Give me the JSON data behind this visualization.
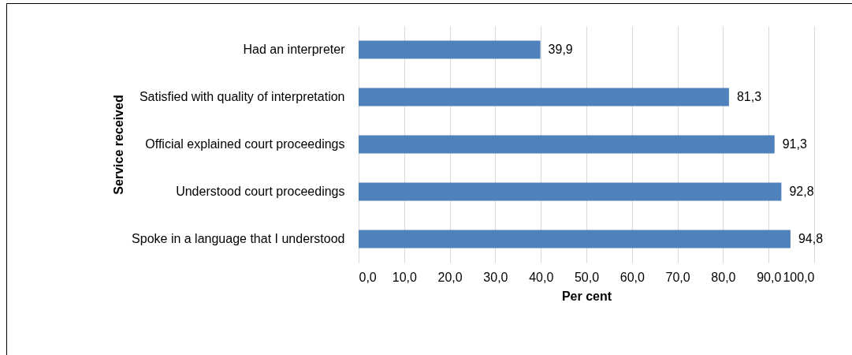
{
  "chart_data": {
    "type": "bar",
    "orientation": "horizontal",
    "xlabel": "Per cent",
    "ylabel": "Service received",
    "categories": [
      "Had an interpreter",
      "Satisfied with quality of interpretation",
      "Official explained court proceedings",
      "Understood court proceedings",
      "Spoke in a language that I understood"
    ],
    "values": [
      39.9,
      81.3,
      91.3,
      92.8,
      94.8
    ],
    "value_labels": [
      "39,9",
      "81,3",
      "91,3",
      "92,8",
      "94,8"
    ],
    "color": "#4f81bd",
    "xlim": [
      0,
      100
    ],
    "xticks": [
      {
        "value": 0,
        "label": "0,0"
      },
      {
        "value": 10,
        "label": "10,0"
      },
      {
        "value": 20,
        "label": "20,0"
      },
      {
        "value": 30,
        "label": "30,0"
      },
      {
        "value": 40,
        "label": "40,0"
      },
      {
        "value": 50,
        "label": "50,0"
      },
      {
        "value": 60,
        "label": "60,0"
      },
      {
        "value": 70,
        "label": "70,0"
      },
      {
        "value": 80,
        "label": "80,0"
      },
      {
        "value": 90,
        "label": "90,0"
      },
      {
        "value": 100,
        "label": "100,0"
      }
    ],
    "grid": "x"
  }
}
